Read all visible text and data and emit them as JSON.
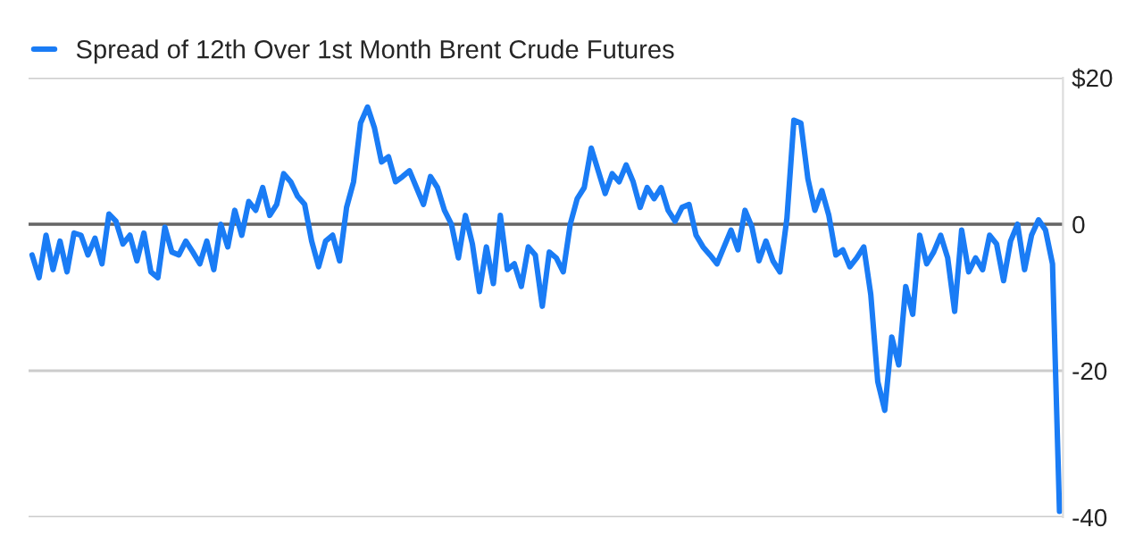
{
  "chart_data": {
    "type": "line",
    "legend": "top left",
    "grid": "y",
    "tick_labels": "y",
    "line_style": "solid",
    "ylim": [
      -40,
      20
    ],
    "yticks": [
      {
        "value": 20,
        "label": "$20"
      },
      0,
      -20,
      -40
    ],
    "ref_lines": [
      {
        "axis": "y",
        "value": 0,
        "color": "#666666"
      }
    ],
    "categories": [
      null,
      null,
      null,
      null,
      null,
      null,
      null,
      null,
      null,
      null,
      null,
      null,
      null,
      null,
      null,
      null,
      null,
      null,
      null,
      null,
      null,
      null,
      null,
      null,
      null,
      null,
      null,
      null,
      null,
      null,
      null,
      null,
      null,
      null,
      null,
      null,
      null,
      null,
      null,
      null,
      null,
      null,
      null,
      null,
      null,
      null,
      null,
      null,
      null,
      null,
      null,
      null,
      null,
      null,
      null,
      null,
      null,
      null,
      null,
      null,
      null,
      null,
      null,
      null,
      null,
      null,
      null,
      null,
      null,
      null,
      null,
      null,
      null,
      null,
      null,
      null,
      null,
      null,
      null,
      null,
      null,
      null,
      null,
      null,
      null,
      null,
      null,
      null,
      null,
      null,
      null,
      null,
      null,
      null,
      null,
      null,
      null,
      null,
      null,
      null,
      null,
      null,
      null,
      null,
      null,
      null,
      null,
      null,
      null,
      null,
      null,
      null,
      null,
      null,
      null,
      null,
      null,
      null,
      null,
      null,
      null,
      null,
      null,
      null,
      null,
      null,
      null,
      null,
      null,
      null,
      null,
      null,
      null,
      null,
      null,
      null,
      null,
      null,
      null,
      null,
      null,
      null,
      null,
      null,
      null,
      null,
      null,
      null
    ],
    "series": [
      {
        "name": "Spread of 12th Over 1st Month Brent Crude Futures",
        "color": "#1a7cf5",
        "values": [
          -4.2,
          -7.3,
          -1.5,
          -6.2,
          -2.3,
          -6.5,
          -1.2,
          -1.5,
          -4.2,
          -1.9,
          -5.4,
          1.4,
          0.4,
          -2.7,
          -1.5,
          -5,
          -1.2,
          -6.5,
          -7.3,
          -0.4,
          -3.8,
          -4.2,
          -2.3,
          -3.8,
          -5.4,
          -2.3,
          -6.2,
          0,
          -3.1,
          1.9,
          -1.5,
          3.1,
          1.9,
          5,
          1.2,
          2.7,
          6.9,
          5.8,
          3.8,
          2.7,
          -2.3,
          -5.8,
          -2.3,
          -1.5,
          -5,
          2.3,
          5.8,
          13.8,
          16,
          13.1,
          8.5,
          9.2,
          5.8,
          6.5,
          7.3,
          5,
          2.7,
          6.5,
          5,
          1.9,
          0,
          -4.6,
          1.2,
          -2.7,
          -9.2,
          -3.1,
          -8.1,
          1.2,
          -6.2,
          -5.4,
          -8.5,
          -3.1,
          -4.2,
          -11.2,
          -3.8,
          -4.6,
          -6.5,
          0,
          3.5,
          5,
          10.4,
          7.3,
          4.2,
          6.9,
          5.8,
          8.1,
          5.8,
          2.3,
          5,
          3.5,
          5,
          1.9,
          0.4,
          2.3,
          2.7,
          -1.5,
          -3.1,
          -4.2,
          -5.4,
          -3.1,
          -0.8,
          -3.5,
          1.9,
          -0.4,
          -5,
          -2.3,
          -5,
          -6.5,
          0.8,
          14.2,
          13.8,
          6.2,
          1.9,
          4.6,
          1.2,
          -4.2,
          -3.5,
          -5.8,
          -4.6,
          -3.1,
          -9.6,
          -21.5,
          -25.4,
          -15.4,
          -19.2,
          -8.5,
          -12.3,
          -1.5,
          -5.4,
          -3.8,
          -1.5,
          -4.6,
          -11.9,
          -0.8,
          -6.5,
          -4.6,
          -6.2,
          -1.5,
          -2.7,
          -7.7,
          -2.3,
          0,
          -6.2,
          -1.5,
          0.6,
          -0.8,
          -5.4,
          -39.2
        ]
      }
    ]
  }
}
